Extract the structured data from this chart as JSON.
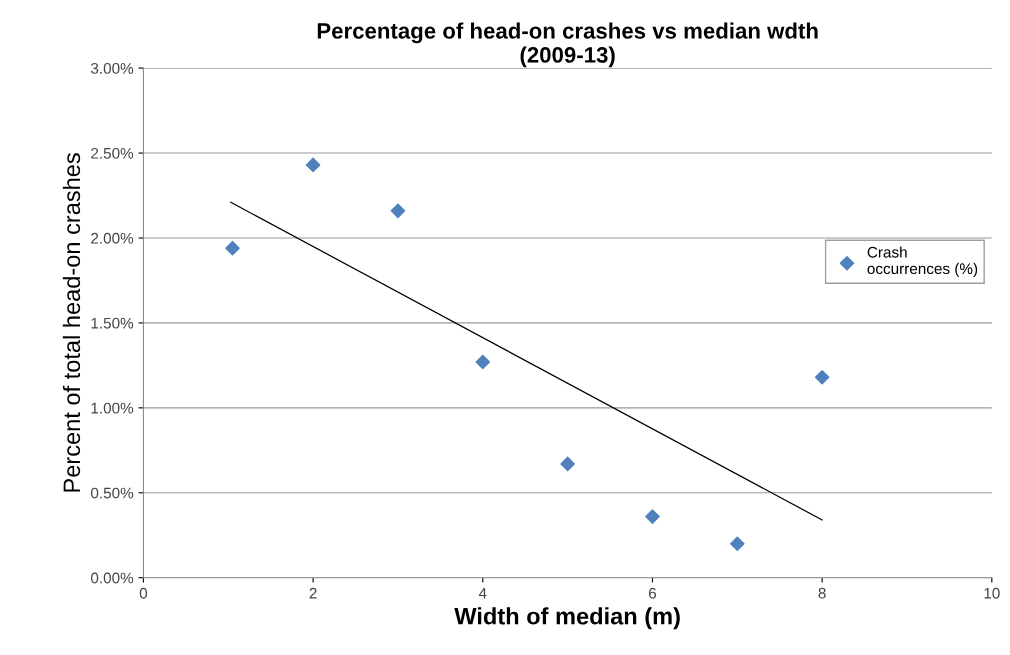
{
  "chart_data": {
    "type": "scatter",
    "title": "Percentage of head-on crashes vs median wdth\n(2009-13)",
    "xlabel": "Width of median (m)",
    "ylabel": "Percent of total head-on crashes",
    "series": [
      {
        "name": "Crash\noccurrences (%)",
        "color": "#4f81bd",
        "x": [
          1.05,
          2,
          3,
          4,
          5,
          6,
          7,
          8
        ],
        "values": [
          1.94,
          2.43,
          2.16,
          1.27,
          0.67,
          0.36,
          0.2,
          1.18
        ],
        "marker": "diamond"
      },
      {
        "type": "line",
        "color": "#000000",
        "x": [
          1.03,
          8
        ],
        "values": [
          2.21,
          0.34
        ],
        "marker": "none"
      }
    ],
    "xlim": [
      0,
      10
    ],
    "xticks": [
      0,
      2,
      4,
      6,
      8,
      10
    ],
    "ylim": [
      0,
      3
    ],
    "yticks": [
      {
        "value": 0,
        "label": "0.00%"
      },
      {
        "value": 0.5,
        "label": "0.50%"
      },
      {
        "value": 1,
        "label": "1.00%"
      },
      {
        "value": 1.5,
        "label": "1.50%"
      },
      {
        "value": 2,
        "label": "2.00%"
      },
      {
        "value": 2.5,
        "label": "2.50%"
      },
      {
        "value": 3,
        "label": "3.00%"
      }
    ],
    "grid": "y",
    "legend": "right"
  }
}
